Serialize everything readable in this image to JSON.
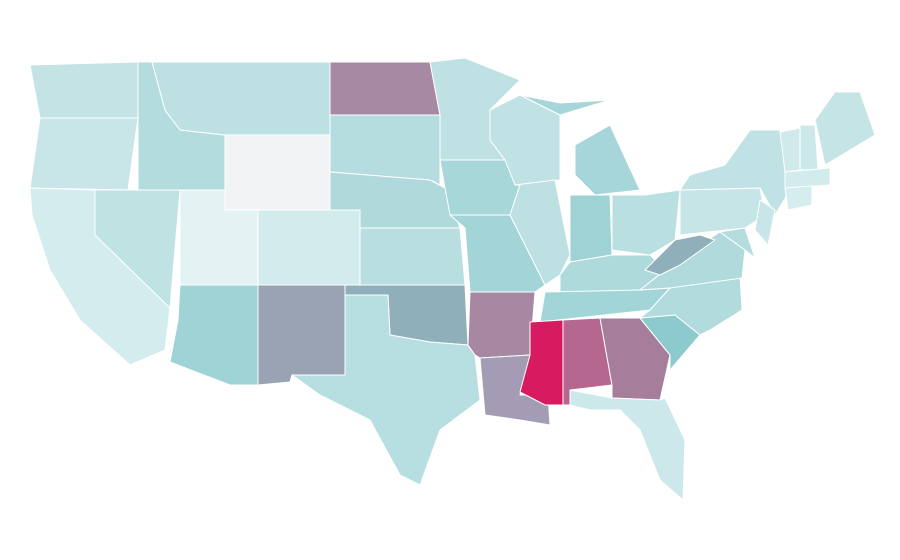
{
  "map": {
    "fills": [
      "#c3e3e5",
      "#c8e6e8",
      "#d3ecee",
      "#bfe2e3",
      "#b3dcde",
      "#bde1e3",
      "#f2f3f5",
      "#e3f3f4",
      "#d2ebed",
      "#9fd3d6",
      "#9aa3b3",
      "#a689a3",
      "#b5dcde",
      "#b0d9dc",
      "#b8dee0",
      "#8fb0ba",
      "#b7dfe1",
      "#bfe1e3",
      "#a8d7da",
      "#a3d5d8",
      "#a887a3",
      "#a39cb4",
      "#c0e2e4",
      "#bde1e3",
      "#a7d6da",
      "#a7d6da",
      "#9ed2d5",
      "#b9dfe1",
      "#aedadc",
      "#a2d5d7",
      "#d81b60",
      "#b5678f",
      "#a67e9c",
      "#cce8ea",
      "#8ccacd",
      "#b2dbdd",
      "#b1dadd",
      "#8fafba",
      "#c6e5e7",
      "#c0e2e4",
      "#b5dcde",
      "#c8e6e8",
      "#d0e9eb",
      "#cde8ea",
      "#c5e4e6",
      "#d2ebed",
      "#d5edef"
    ]
  }
}
